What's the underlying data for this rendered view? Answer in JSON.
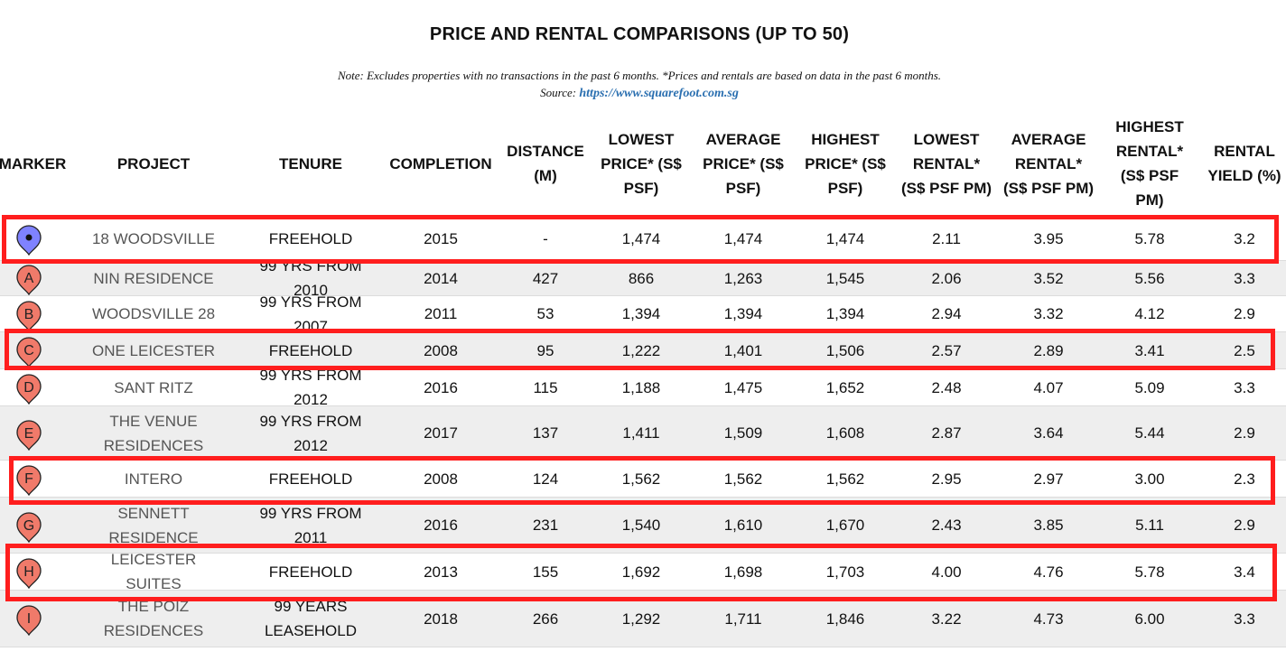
{
  "title": "PRICE AND RENTAL COMPARISONS (UP TO 50)",
  "note": "Note: Excludes properties with no transactions in the past 6 months. *Prices and rentals are based on data in the past 6 months.",
  "source_label": "Source:",
  "source_link": "https://www.squarefoot.com.sg",
  "colors": {
    "highlight": "#ff1e1e",
    "marker_main": "#7f82ff",
    "marker_other": "#f07a6a",
    "link": "#2a6fb0",
    "alt_row": "#eeeeee"
  },
  "columns": [
    {
      "key": "marker",
      "label": "MARKER"
    },
    {
      "key": "project",
      "label": "PROJECT"
    },
    {
      "key": "tenure",
      "label": "TENURE"
    },
    {
      "key": "completion",
      "label": "COMPLETION"
    },
    {
      "key": "distance",
      "label": "DISTANCE (M)"
    },
    {
      "key": "lowest_price",
      "label": "LOWEST PRICE* (S$ PSF)"
    },
    {
      "key": "average_price",
      "label": "AVERAGE PRICE* (S$ PSF)"
    },
    {
      "key": "highest_price",
      "label": "HIGHEST PRICE* (S$ PSF)"
    },
    {
      "key": "lowest_rental",
      "label": "LOWEST RENTAL* (S$ PSF PM)"
    },
    {
      "key": "average_rental",
      "label": "AVERAGE RENTAL* (S$ PSF PM)"
    },
    {
      "key": "highest_rental",
      "label": "HIGHEST RENTAL* (S$ PSF PM)"
    },
    {
      "key": "rental_yield",
      "label": "RENTAL YIELD (%)"
    }
  ],
  "rows": [
    {
      "marker": "",
      "marker_icon": "map-pin-icon-current",
      "project": "18 WOODSVILLE",
      "tenure": "FREEHOLD",
      "completion": "2015",
      "distance": "-",
      "lowest_price": "1,474",
      "average_price": "1,474",
      "highest_price": "1,474",
      "lowest_rental": "2.11",
      "average_rental": "3.95",
      "highest_rental": "5.78",
      "rental_yield": "3.2",
      "highlighted": true
    },
    {
      "marker": "A",
      "marker_icon": "map-pin-icon",
      "project": "NIN RESIDENCE",
      "tenure": "99 YRS FROM 2010",
      "completion": "2014",
      "distance": "427",
      "lowest_price": "866",
      "average_price": "1,263",
      "highest_price": "1,545",
      "lowest_rental": "2.06",
      "average_rental": "3.52",
      "highest_rental": "5.56",
      "rental_yield": "3.3",
      "highlighted": false
    },
    {
      "marker": "B",
      "marker_icon": "map-pin-icon",
      "project": "WOODSVILLE 28",
      "tenure": "99 YRS FROM 2007",
      "completion": "2011",
      "distance": "53",
      "lowest_price": "1,394",
      "average_price": "1,394",
      "highest_price": "1,394",
      "lowest_rental": "2.94",
      "average_rental": "3.32",
      "highest_rental": "4.12",
      "rental_yield": "2.9",
      "highlighted": false
    },
    {
      "marker": "C",
      "marker_icon": "map-pin-icon",
      "project": "ONE LEICESTER",
      "tenure": "FREEHOLD",
      "completion": "2008",
      "distance": "95",
      "lowest_price": "1,222",
      "average_price": "1,401",
      "highest_price": "1,506",
      "lowest_rental": "2.57",
      "average_rental": "2.89",
      "highest_rental": "3.41",
      "rental_yield": "2.5",
      "highlighted": true
    },
    {
      "marker": "D",
      "marker_icon": "map-pin-icon",
      "project": "SANT RITZ",
      "tenure": "99 YRS FROM 2012",
      "completion": "2016",
      "distance": "115",
      "lowest_price": "1,188",
      "average_price": "1,475",
      "highest_price": "1,652",
      "lowest_rental": "2.48",
      "average_rental": "4.07",
      "highest_rental": "5.09",
      "rental_yield": "3.3",
      "highlighted": false
    },
    {
      "marker": "E",
      "marker_icon": "map-pin-icon",
      "project": "THE VENUE RESIDENCES",
      "tenure": "99 YRS FROM 2012",
      "completion": "2017",
      "distance": "137",
      "lowest_price": "1,411",
      "average_price": "1,509",
      "highest_price": "1,608",
      "lowest_rental": "2.87",
      "average_rental": "3.64",
      "highest_rental": "5.44",
      "rental_yield": "2.9",
      "highlighted": false
    },
    {
      "marker": "F",
      "marker_icon": "map-pin-icon",
      "project": "INTERO",
      "tenure": "FREEHOLD",
      "completion": "2008",
      "distance": "124",
      "lowest_price": "1,562",
      "average_price": "1,562",
      "highest_price": "1,562",
      "lowest_rental": "2.95",
      "average_rental": "2.97",
      "highest_rental": "3.00",
      "rental_yield": "2.3",
      "highlighted": true
    },
    {
      "marker": "G",
      "marker_icon": "map-pin-icon",
      "project": "SENNETT RESIDENCE",
      "tenure": "99 YRS FROM 2011",
      "completion": "2016",
      "distance": "231",
      "lowest_price": "1,540",
      "average_price": "1,610",
      "highest_price": "1,670",
      "lowest_rental": "2.43",
      "average_rental": "3.85",
      "highest_rental": "5.11",
      "rental_yield": "2.9",
      "highlighted": false
    },
    {
      "marker": "H",
      "marker_icon": "map-pin-icon",
      "project": "LEICESTER SUITES",
      "tenure": "FREEHOLD",
      "completion": "2013",
      "distance": "155",
      "lowest_price": "1,692",
      "average_price": "1,698",
      "highest_price": "1,703",
      "lowest_rental": "4.00",
      "average_rental": "4.76",
      "highest_rental": "5.78",
      "rental_yield": "3.4",
      "highlighted": true
    },
    {
      "marker": "I",
      "marker_icon": "map-pin-icon",
      "project": "THE POIZ RESIDENCES",
      "tenure": "99 YEARS LEASEHOLD",
      "completion": "2018",
      "distance": "266",
      "lowest_price": "1,292",
      "average_price": "1,711",
      "highest_price": "1,846",
      "lowest_rental": "3.22",
      "average_rental": "4.73",
      "highest_rental": "6.00",
      "rental_yield": "3.3",
      "highlighted": false
    }
  ]
}
